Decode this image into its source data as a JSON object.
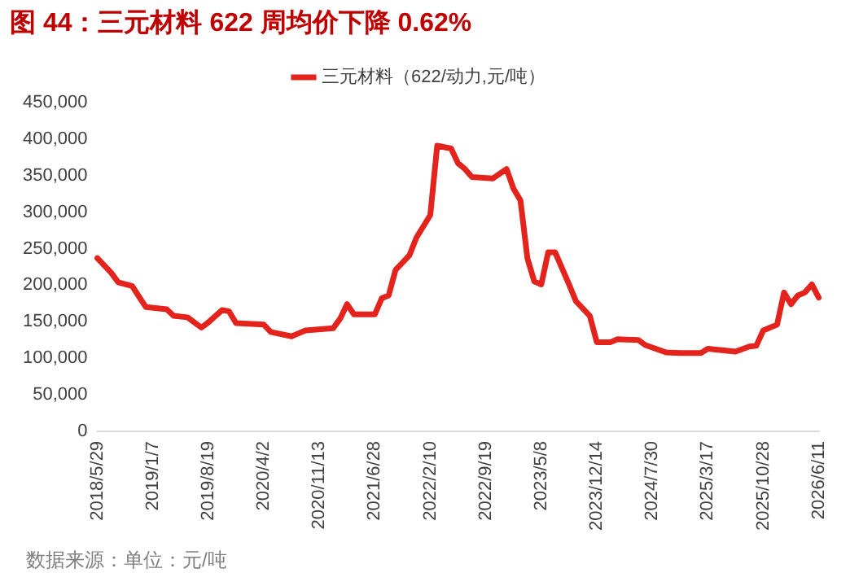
{
  "chart_data": {
    "type": "line",
    "title": "图 44：三元材料 622 周均价下降 0.62%",
    "annotations": [
      "数据来源：单位：元/吨"
    ],
    "categories": [
      "2018/5/29",
      null,
      null,
      null,
      null,
      null,
      null,
      null,
      "2019/1/7",
      null,
      null,
      null,
      null,
      null,
      null,
      null,
      "2019/8/19",
      null,
      null,
      null,
      null,
      null,
      null,
      null,
      "2020/4/2",
      null,
      null,
      null,
      null,
      null,
      null,
      null,
      "2020/11/13",
      null,
      null,
      null,
      null,
      null,
      null,
      null,
      "2021/6/28",
      null,
      null,
      null,
      null,
      null,
      null,
      null,
      "2022/2/10",
      null,
      null,
      null,
      null,
      null,
      null,
      null,
      "2022/9/19",
      null,
      null,
      null,
      null,
      null,
      null,
      null,
      "2023/5/8",
      null,
      null,
      null,
      null,
      null,
      null,
      null,
      "2023/12/14",
      null,
      null,
      null,
      null,
      null,
      null,
      null,
      "2024/7/30",
      null,
      null,
      null,
      null,
      null,
      null,
      null,
      "2025/3/17",
      null,
      null,
      null,
      null,
      null,
      null,
      null,
      "2025/10/28",
      null,
      null,
      null,
      null,
      null,
      null,
      null,
      "2026/6/11"
    ],
    "series": [
      {
        "name": "三元材料（622/动力,元/吨）",
        "color": "#e3231c",
        "values": [
          237000,
          null,
          217000,
          204000,
          null,
          199000,
          null,
          170000,
          null,
          null,
          167000,
          158000,
          null,
          156000,
          null,
          142000,
          149000,
          null,
          166000,
          164000,
          148000,
          null,
          null,
          null,
          146000,
          136000,
          null,
          null,
          130000,
          134000,
          138000,
          null,
          null,
          null,
          141000,
          154000,
          174000,
          160000,
          null,
          null,
          160000,
          182000,
          186000,
          221000,
          null,
          241000,
          265000,
          null,
          296000,
          391000,
          null,
          387000,
          367000,
          359000,
          348000,
          null,
          null,
          346000,
          null,
          359000,
          332000,
          316000,
          237000,
          205000,
          201000,
          245000,
          245000,
          null,
          201000,
          178000,
          null,
          158000,
          122000,
          null,
          122000,
          126000,
          null,
          null,
          125000,
          118000,
          null,
          null,
          108000,
          null,
          107000,
          null,
          null,
          107000,
          113000,
          null,
          null,
          null,
          109000,
          null,
          116000,
          117000,
          138000,
          null,
          146000,
          190000,
          174000,
          186000,
          190000,
          201000,
          183000
        ]
      }
    ],
    "ylim": [
      0,
      450000
    ],
    "yticks": [
      0,
      {
        "value": 50000,
        "label": "50,000"
      },
      {
        "value": 100000,
        "label": "100,000"
      },
      {
        "value": 150000,
        "label": "150,000"
      },
      {
        "value": 200000,
        "label": "200,000"
      },
      {
        "value": 250000,
        "label": "250,000"
      },
      {
        "value": 300000,
        "label": "300,000"
      },
      {
        "value": 350000,
        "label": "350,000"
      },
      {
        "value": 400000,
        "label": "400,000"
      },
      {
        "value": 450000,
        "label": "450,000"
      }
    ],
    "grid": false,
    "legend": "top",
    "marker": "none",
    "line_style": "solid"
  }
}
